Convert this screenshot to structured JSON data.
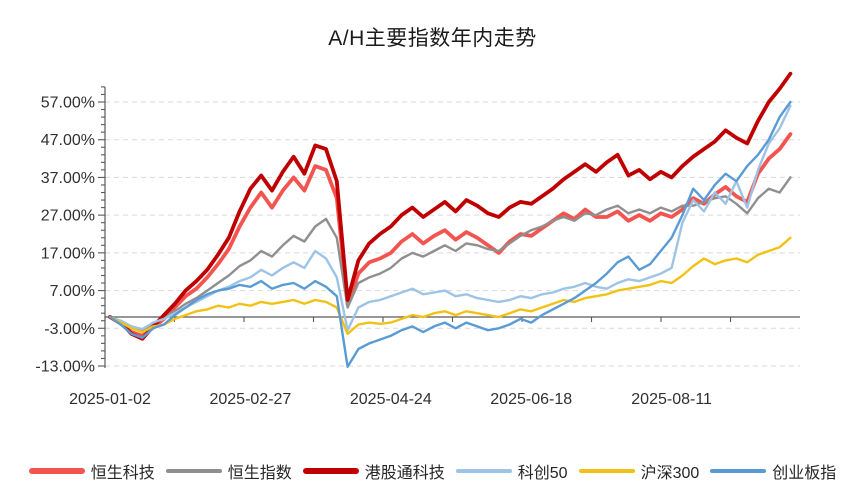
{
  "title": "A/H主要指数年内走势",
  "chart_data": {
    "type": "line",
    "title": "A/H主要指数年内走势",
    "grid": "horizontal-dashed",
    "legend_position": "bottom",
    "x_axis": {
      "tick_labels": [
        "2025-01-02",
        "2025-02-27",
        "2025-04-24",
        "2025-06-18",
        "2025-08-11"
      ],
      "tick_indices": [
        0,
        13,
        26,
        39,
        52
      ],
      "points_per_series": 64
    },
    "y_axis": {
      "unit": "%",
      "min": -13,
      "max": 57,
      "tick_labels": [
        "57.00%",
        "47.00%",
        "37.00%",
        "27.00%",
        "17.00%",
        "7.00%",
        "-3.00%",
        "-13.00%"
      ],
      "tick_values": [
        57,
        47,
        37,
        27,
        17,
        7,
        -3,
        -13
      ],
      "zero_line": 0
    },
    "series": [
      {
        "id": "hengsheng-keji",
        "name": "恒生科技",
        "color": "#F4544F",
        "thick": true,
        "values": [
          0,
          -1.8,
          -4,
          -5,
          -2.8,
          -0.5,
          2.5,
          5.5,
          7.5,
          10.5,
          14,
          18,
          24,
          29,
          33,
          29,
          33.5,
          37,
          33.5,
          40,
          39,
          31.5,
          3.5,
          11.5,
          14.5,
          15.5,
          17,
          20,
          22,
          19.5,
          21.5,
          23,
          20.5,
          22.5,
          21,
          19,
          17,
          20,
          22,
          21.5,
          23.5,
          25.5,
          27.5,
          26,
          28.5,
          26.5,
          26.5,
          28,
          25.5,
          27,
          25.5,
          27.5,
          26.5,
          28.5,
          31.5,
          30,
          32.5,
          34.5,
          32,
          30.5,
          38,
          42,
          44.5,
          48.5
        ]
      },
      {
        "id": "hengsheng-zhishu",
        "name": "恒生指数",
        "color": "#8F8F8F",
        "thick": false,
        "values": [
          0,
          -1.2,
          -2.8,
          -3.5,
          -1.8,
          0,
          1.5,
          3.5,
          5,
          7,
          9,
          11,
          13.5,
          15,
          17.5,
          16,
          19,
          21.5,
          20,
          24,
          26,
          21,
          2.5,
          9,
          10.5,
          11.5,
          13,
          15.5,
          17,
          16,
          17.5,
          19,
          17.5,
          19.5,
          19,
          18,
          17.5,
          19.5,
          21.5,
          23,
          24,
          25.5,
          26.5,
          25.5,
          27.5,
          27,
          28.5,
          29.5,
          27.5,
          28.5,
          27.5,
          29,
          28,
          29.5,
          29.5,
          30.5,
          31.5,
          32,
          30,
          27.5,
          31.5,
          34,
          33,
          37
        ]
      },
      {
        "id": "ganggutong-keji",
        "name": "港股通科技",
        "color": "#C00000",
        "thick": true,
        "values": [
          0,
          -1.5,
          -4.5,
          -5.8,
          -2.5,
          0.5,
          3.5,
          7,
          9.5,
          12.5,
          16.5,
          21,
          28,
          34,
          37.5,
          33.5,
          38.5,
          42.5,
          38,
          45.5,
          44.5,
          36,
          4.5,
          15,
          19.5,
          22,
          24,
          27,
          29,
          26.5,
          28.5,
          30.5,
          28,
          31,
          29.5,
          27.5,
          26.5,
          29,
          30.5,
          30,
          32,
          34,
          36.5,
          38.5,
          40.5,
          38.5,
          41,
          43,
          37.5,
          39,
          36.5,
          38.5,
          37,
          40,
          42.5,
          44.5,
          46.5,
          49.5,
          47.5,
          46,
          52,
          57,
          60.5,
          64.5
        ]
      },
      {
        "id": "kechuang50",
        "name": "科创50",
        "color": "#9DC3E6",
        "thick": false,
        "values": [
          0,
          -1,
          -2.5,
          -3.2,
          -1.5,
          -0.5,
          1,
          2.5,
          4,
          5.5,
          7,
          8,
          9.5,
          10.5,
          12.5,
          11,
          13,
          14.5,
          13,
          17.5,
          15.5,
          10.5,
          -3.5,
          2.5,
          4,
          4.5,
          5.5,
          6.5,
          7.5,
          6,
          6.5,
          7,
          5.5,
          6,
          5,
          4.5,
          4,
          4.5,
          5.5,
          5,
          6,
          6.5,
          7.5,
          8,
          9,
          8,
          7.5,
          9,
          10,
          9.5,
          10.5,
          11.5,
          13,
          25,
          31,
          28,
          33,
          30,
          36,
          29,
          39,
          46,
          50,
          56
        ]
      },
      {
        "id": "hushen300",
        "name": "沪深300",
        "color": "#F2C116",
        "thick": false,
        "values": [
          0,
          -1.5,
          -3,
          -4,
          -2.5,
          -2,
          -0.5,
          0.5,
          1.5,
          2,
          3,
          2.5,
          3.5,
          3,
          4,
          3.5,
          4,
          4.5,
          3.5,
          4.5,
          4,
          2.5,
          -4.5,
          -2,
          -1.5,
          -1.8,
          -1.5,
          -0.5,
          0.5,
          0,
          1,
          1.5,
          0.5,
          1.5,
          1,
          0.5,
          0,
          1,
          2,
          1.5,
          2.5,
          3.5,
          4.5,
          4,
          5,
          5.5,
          6,
          7,
          7.5,
          8,
          8.5,
          9.5,
          9,
          11,
          13.5,
          15.5,
          14,
          15,
          15.5,
          14.5,
          16.5,
          17.5,
          18.5,
          21
        ]
      },
      {
        "id": "chuangyeban-zhi",
        "name": "创业板指",
        "color": "#5B9BD5",
        "thick": false,
        "values": [
          0,
          -2,
          -4.5,
          -5.5,
          -3,
          -2,
          0.5,
          2.5,
          4.5,
          6,
          7,
          7.5,
          8.5,
          8,
          9.5,
          7.5,
          8.5,
          9,
          7.5,
          9.5,
          8,
          5.5,
          -13.2,
          -8.5,
          -7,
          -6,
          -5,
          -3.5,
          -2.5,
          -4,
          -2.5,
          -1.5,
          -3,
          -1.5,
          -2.5,
          -3.5,
          -3,
          -2,
          -0.5,
          -1.5,
          0.5,
          2,
          3.5,
          5,
          7,
          9,
          11.5,
          14.5,
          16,
          12.5,
          14,
          17.5,
          21,
          27,
          34,
          31,
          35,
          38,
          36,
          40,
          43,
          47,
          53,
          57
        ]
      }
    ]
  }
}
